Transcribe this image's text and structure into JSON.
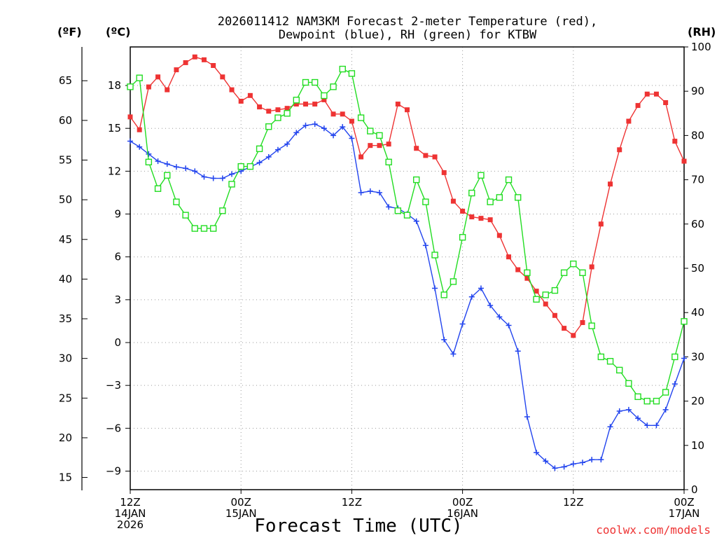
{
  "chart_data": {
    "type": "line",
    "title": [
      "2026011412 NAM3KM Forecast 2-meter Temperature (red),",
      "Dewpoint (blue), RH (green) for KTBW"
    ],
    "xlabel": "Forecast Time (UTC)",
    "credit": "coolwx.com/models",
    "units": {
      "fahrenheit": "(ºF)",
      "celsius": "(ºC)",
      "rh": "(RH)"
    },
    "colors": {
      "temperature": "#ee3333",
      "dewpoint": "#2244ee",
      "rh": "#22dd22",
      "credit": "#ee3333"
    },
    "x_hours_range": [
      0,
      60
    ],
    "ylim_celsius": [
      -10.3,
      20.7
    ],
    "ylim_rh": [
      0,
      100
    ],
    "x_ticks": [
      {
        "hour": 0,
        "line1": "12Z",
        "line2": "14JAN",
        "line3": "2026"
      },
      {
        "hour": 12,
        "line1": "00Z",
        "line2": "15JAN",
        "line3": ""
      },
      {
        "hour": 24,
        "line1": "12Z",
        "line2": "",
        "line3": ""
      },
      {
        "hour": 36,
        "line1": "00Z",
        "line2": "16JAN",
        "line3": ""
      },
      {
        "hour": 48,
        "line1": "12Z",
        "line2": "",
        "line3": ""
      },
      {
        "hour": 60,
        "line1": "00Z",
        "line2": "17JAN",
        "line3": ""
      }
    ],
    "celsius_ticks": [
      "18",
      "15",
      "12",
      "9",
      "6",
      "3",
      "0",
      "−3",
      "−6",
      "−9"
    ],
    "fahrenheit_ticks": [
      "65",
      "60",
      "55",
      "50",
      "45",
      "40",
      "35",
      "30",
      "25",
      "20",
      "15"
    ],
    "rh_ticks": [
      "100",
      "90",
      "80",
      "70",
      "60",
      "50",
      "40",
      "30",
      "20",
      "10",
      "0"
    ],
    "series": [
      {
        "name": "Temperature (°C)",
        "axis": "celsius",
        "values": [
          15.8,
          14.9,
          17.9,
          18.6,
          17.7,
          19.1,
          19.6,
          20.0,
          19.8,
          19.4,
          18.6,
          17.7,
          16.9,
          17.3,
          16.5,
          16.2,
          16.3,
          16.4,
          16.7,
          16.7,
          16.7,
          17.0,
          16.0,
          16.0,
          15.5,
          13.0,
          13.8,
          13.8,
          13.9,
          16.7,
          16.3,
          13.6,
          13.1,
          13.0,
          11.9,
          9.9,
          9.2,
          8.8,
          8.7,
          8.6,
          7.5,
          6.0,
          5.1,
          4.5,
          3.6,
          2.7,
          1.9,
          1.0,
          0.5,
          1.4,
          5.3,
          8.3,
          11.1,
          13.5,
          15.5,
          16.6,
          17.4,
          17.4,
          16.8,
          14.1,
          12.7
        ]
      },
      {
        "name": "Dewpoint (°C)",
        "axis": "celsius",
        "values": [
          14.1,
          13.7,
          13.2,
          12.7,
          12.5,
          12.3,
          12.2,
          12.0,
          11.6,
          11.5,
          11.5,
          11.8,
          12.0,
          12.3,
          12.6,
          13.0,
          13.5,
          13.9,
          14.7,
          15.2,
          15.3,
          15.0,
          14.5,
          15.1,
          14.3,
          10.5,
          10.6,
          10.5,
          9.5,
          9.4,
          9.0,
          8.5,
          6.8,
          3.8,
          0.2,
          -0.8,
          1.3,
          3.2,
          3.8,
          2.6,
          1.8,
          1.2,
          -0.6,
          -5.2,
          -7.7,
          -8.3,
          -8.8,
          -8.7,
          -8.5,
          -8.4,
          -8.2,
          -8.2,
          -5.9,
          -4.8,
          -4.7,
          -5.3,
          -5.8,
          -5.8,
          -4.7,
          -2.9,
          -1.1
        ]
      },
      {
        "name": "RH (%)",
        "axis": "rh",
        "values": [
          91,
          93,
          74,
          68,
          71,
          65,
          62,
          59,
          59,
          59,
          63,
          69,
          73,
          73,
          77,
          82,
          84,
          85,
          88,
          92,
          92,
          89,
          91,
          95,
          94,
          84,
          81,
          80,
          74,
          63,
          62,
          70,
          65,
          53,
          44,
          47,
          57,
          67,
          71,
          65,
          66,
          70,
          66,
          49,
          43,
          44,
          45,
          49,
          51,
          49,
          37,
          30,
          29,
          27,
          24,
          21,
          20,
          20,
          22,
          30,
          38
        ]
      }
    ]
  }
}
